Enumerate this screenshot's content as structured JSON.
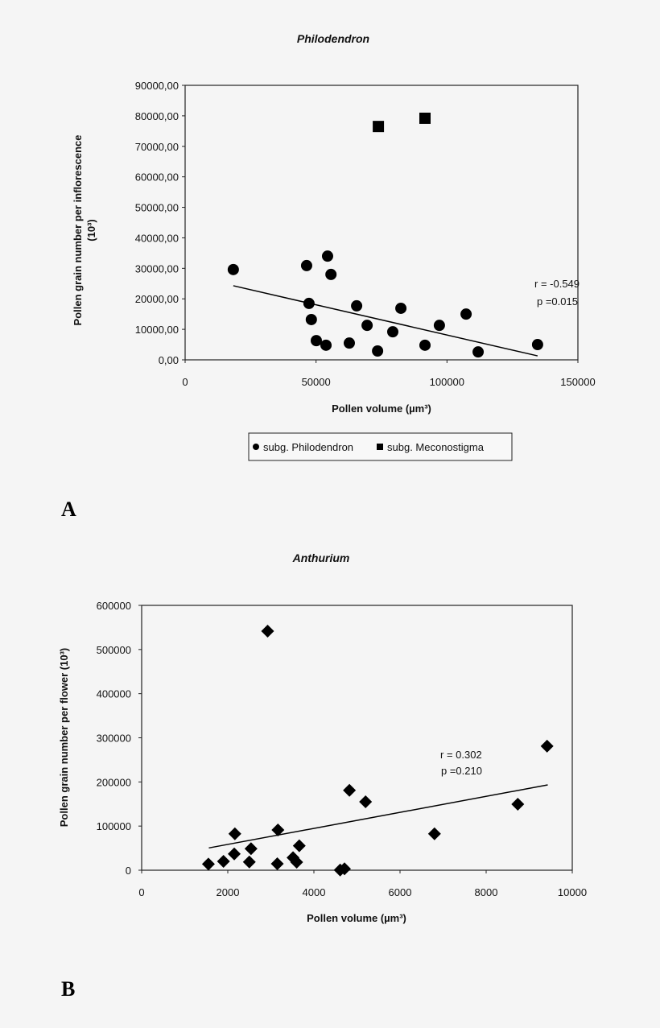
{
  "chart_data": [
    {
      "type": "scatter",
      "panel_label": "A",
      "title": "Philodendron",
      "xlabel": "Pollen volume (µm³)",
      "ylabel": "Pollen grain number per inflorescence",
      "ylabel_unit": "(10³)",
      "xlim": [
        0,
        150000
      ],
      "ylim": [
        0,
        90000
      ],
      "x_ticks": [
        "0",
        "50000",
        "100000",
        "150000"
      ],
      "y_ticks": [
        "0,00",
        "10000,00",
        "20000,00",
        "30000,00",
        "40000,00",
        "50000,00",
        "60000,00",
        "70000,00",
        "80000,00",
        "90000,00"
      ],
      "grid": false,
      "legend_placement": "bottom",
      "annotation": [
        "r = -0.549",
        "p =0.015"
      ],
      "series": [
        {
          "name": "subg. Philodendron",
          "marker": "circle",
          "points": [
            [
              18400,
              29600
            ],
            [
              46400,
              30900
            ],
            [
              54400,
              34000
            ],
            [
              55700,
              28000
            ],
            [
              47300,
              18500
            ],
            [
              48200,
              13200
            ],
            [
              50100,
              6300
            ],
            [
              53800,
              4800
            ],
            [
              62700,
              5500
            ],
            [
              65500,
              17700
            ],
            [
              69500,
              11300
            ],
            [
              73500,
              2900
            ],
            [
              79300,
              9200
            ],
            [
              82400,
              16900
            ],
            [
              91600,
              4800
            ],
            [
              97100,
              11300
            ],
            [
              107300,
              15000
            ],
            [
              111900,
              2600
            ],
            [
              134600,
              5000
            ]
          ]
        },
        {
          "name": "subg. Meconostigma",
          "marker": "square",
          "points": [
            [
              73800,
              76500
            ],
            [
              91600,
              79200
            ]
          ]
        }
      ],
      "trendline": [
        [
          18400,
          24300
        ],
        [
          134600,
          1300
        ]
      ]
    },
    {
      "type": "scatter",
      "panel_label": "B",
      "title": "Anthurium",
      "xlabel": "Pollen volume (µm³)",
      "ylabel": "Pollen grain number per flower (10³)",
      "xlim": [
        0,
        10000
      ],
      "ylim": [
        0,
        600000
      ],
      "x_ticks": [
        "0",
        "2000",
        "4000",
        "6000",
        "8000",
        "10000"
      ],
      "y_ticks": [
        "0",
        "100000",
        "200000",
        "300000",
        "400000",
        "500000",
        "600000"
      ],
      "grid": false,
      "annotation": [
        "r = 0.302",
        "p =0.210"
      ],
      "series": [
        {
          "marker": "diamond",
          "points": [
            [
              1550,
              14000
            ],
            [
              1900,
              20000
            ],
            [
              2150,
              37000
            ],
            [
              2165,
              82600
            ],
            [
              2540,
              48700
            ],
            [
              2500,
              18800
            ],
            [
              2925,
              541600
            ],
            [
              3165,
              91200
            ],
            [
              3150,
              14600
            ],
            [
              3515,
              28600
            ],
            [
              3600,
              18200
            ],
            [
              3660,
              55300
            ],
            [
              4610,
              500
            ],
            [
              4710,
              3100
            ],
            [
              4825,
              181000
            ],
            [
              5200,
              155000
            ],
            [
              6800,
              82600
            ],
            [
              8735,
              149500
            ],
            [
              9415,
              281000
            ]
          ]
        }
      ],
      "trendline": [
        [
          1560,
          50500
        ],
        [
          9430,
          193300
        ]
      ]
    }
  ]
}
